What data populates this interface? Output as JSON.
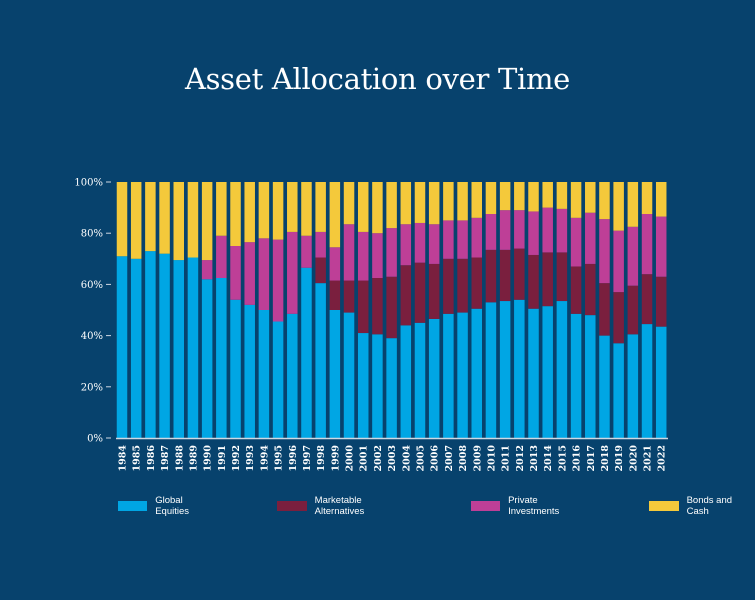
{
  "chart_data": {
    "type": "bar",
    "stacked": true,
    "title": "Asset Allocation over Time",
    "xlabel": "",
    "ylabel": "",
    "ylim": [
      0,
      100
    ],
    "yticks": [
      "0%",
      "20%",
      "40%",
      "60%",
      "80%",
      "100%"
    ],
    "grid": false,
    "legend_position": "bottom",
    "categories": [
      "1984",
      "1985",
      "1986",
      "1987",
      "1988",
      "1989",
      "1990",
      "1991",
      "1992",
      "1993",
      "1994",
      "1995",
      "1996",
      "1997",
      "1998",
      "1999",
      "2000",
      "2001",
      "2002",
      "2003",
      "2004",
      "2005",
      "2006",
      "2007",
      "2008",
      "2009",
      "2010",
      "2011",
      "2012",
      "2013",
      "2014",
      "2015",
      "2016",
      "2017",
      "2018",
      "2019",
      "2020",
      "2021",
      "2022"
    ],
    "series": [
      {
        "name": "Global Equities",
        "color": "#00a6e4",
        "values": [
          71,
          70,
          73,
          72,
          69.5,
          70.5,
          62,
          62.5,
          54,
          52,
          50,
          45.5,
          48.5,
          66.5,
          60.5,
          50,
          49,
          41,
          40.5,
          39,
          44,
          45,
          46.5,
          48.5,
          49,
          50.5,
          53,
          53.5,
          54,
          50.5,
          51.5,
          53.5,
          48.5,
          48,
          40,
          37,
          40.5,
          44.5,
          43.5
        ]
      },
      {
        "name": "Marketable Alternatives",
        "color": "#7a1f3e",
        "values": [
          0,
          0,
          0,
          0,
          0,
          0,
          0,
          0,
          0,
          0,
          0,
          0,
          0,
          0,
          10,
          11.5,
          12.5,
          20.5,
          22,
          24,
          23.5,
          23.5,
          21.5,
          21.5,
          21,
          20,
          20.5,
          20,
          20,
          21,
          21,
          19,
          18.5,
          20,
          20.5,
          20,
          19,
          19.5,
          19.5
        ]
      },
      {
        "name": "Private Investments",
        "color": "#be3f97",
        "values": [
          0,
          0,
          0,
          0,
          0,
          0,
          7.5,
          16.5,
          21,
          24.5,
          28,
          32,
          32,
          12.5,
          10,
          13,
          22,
          19,
          17.5,
          19,
          16,
          15.5,
          15.5,
          15,
          15,
          15.5,
          14,
          15.5,
          15,
          17,
          17.5,
          17,
          19,
          20,
          25,
          24,
          23,
          23.5,
          23.5
        ]
      },
      {
        "name": "Bonds and Cash",
        "color": "#f4c93b",
        "values": [
          29,
          30,
          27,
          28,
          30.5,
          29.5,
          30.5,
          21,
          25,
          23.5,
          22,
          22.5,
          19.5,
          21,
          19.5,
          25.5,
          16.5,
          19.5,
          20,
          18,
          16.5,
          16,
          16.5,
          15,
          15,
          14,
          12.5,
          11,
          11,
          11.5,
          10,
          10.5,
          14,
          12,
          14.5,
          19,
          17.5,
          12.5,
          13.5
        ]
      }
    ]
  }
}
